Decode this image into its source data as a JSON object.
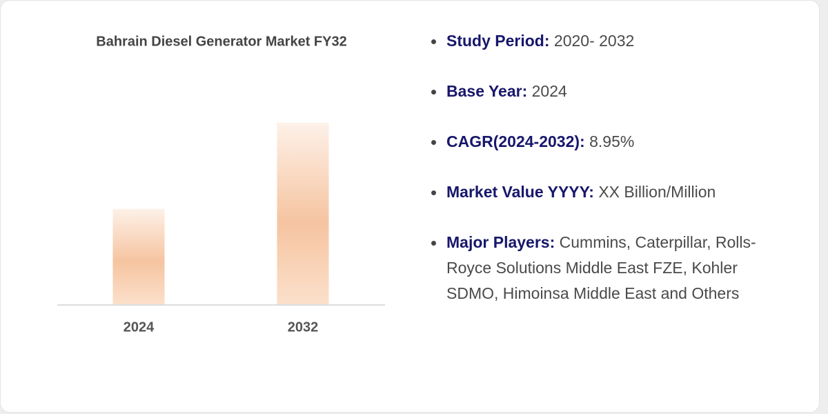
{
  "chart_data": {
    "type": "bar",
    "title": "Bahrain Diesel Generator Market FY32",
    "categories": [
      "2024",
      "2032"
    ],
    "values": [
      1.0,
      1.9
    ]
  },
  "details": [
    {
      "label": "Study Period:",
      "value": "2020- 2032"
    },
    {
      "label": "Base Year:",
      "value": "2024"
    },
    {
      "label": "CAGR(2024-2032):",
      "value": "8.95%"
    },
    {
      "label": "Market Value YYYY:",
      "value": "XX Billion/Million"
    },
    {
      "label": "Major Players:",
      "value": "Cummins, Caterpillar, Rolls-Royce Solutions Middle East FZE, Kohler SDMO, Himoinsa Middle East and Others"
    }
  ]
}
